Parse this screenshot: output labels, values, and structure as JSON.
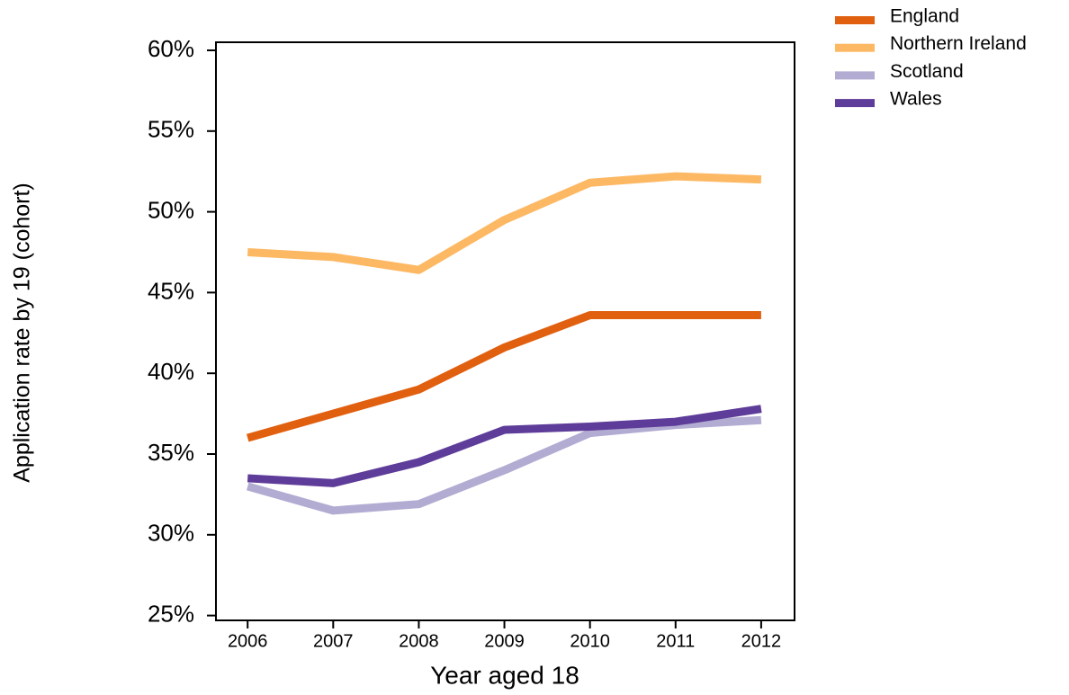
{
  "chart_data": {
    "type": "line",
    "x_label": "Year aged 18",
    "y_label": "Application rate by 19 (cohort)",
    "x": [
      2006,
      2007,
      2008,
      2009,
      2010,
      2011,
      2012
    ],
    "xlim": [
      2005.63,
      2012.39
    ],
    "xticks": [
      2006,
      2007,
      2008,
      2009,
      2010,
      2011,
      2012
    ],
    "ylim": [
      24.7,
      60.5
    ],
    "yticks": [
      {
        "value": 25,
        "label": "25%"
      },
      {
        "value": 30,
        "label": "30%"
      },
      {
        "value": 35,
        "label": "35%"
      },
      {
        "value": 40,
        "label": "40%"
      },
      {
        "value": 45,
        "label": "45%"
      },
      {
        "value": 50,
        "label": "50%"
      },
      {
        "value": 55,
        "label": "55%"
      },
      {
        "value": 60,
        "label": "60%"
      }
    ],
    "legend": "top-right",
    "series": [
      {
        "name": "England",
        "color": "#e06010",
        "values": [
          36.0,
          37.5,
          39.0,
          41.6,
          43.6,
          43.6,
          43.6
        ]
      },
      {
        "name": "Northern Ireland",
        "color": "#fdb863",
        "values": [
          47.5,
          47.2,
          46.4,
          49.5,
          51.8,
          52.2,
          52.0
        ]
      },
      {
        "name": "Scotland",
        "color": "#b2abd2",
        "values": [
          33.0,
          31.5,
          31.9,
          34.0,
          36.3,
          36.8,
          37.1
        ]
      },
      {
        "name": "Wales",
        "color": "#5e3c99",
        "values": [
          33.5,
          33.2,
          34.5,
          36.5,
          36.7,
          37.0,
          37.8
        ]
      }
    ]
  }
}
